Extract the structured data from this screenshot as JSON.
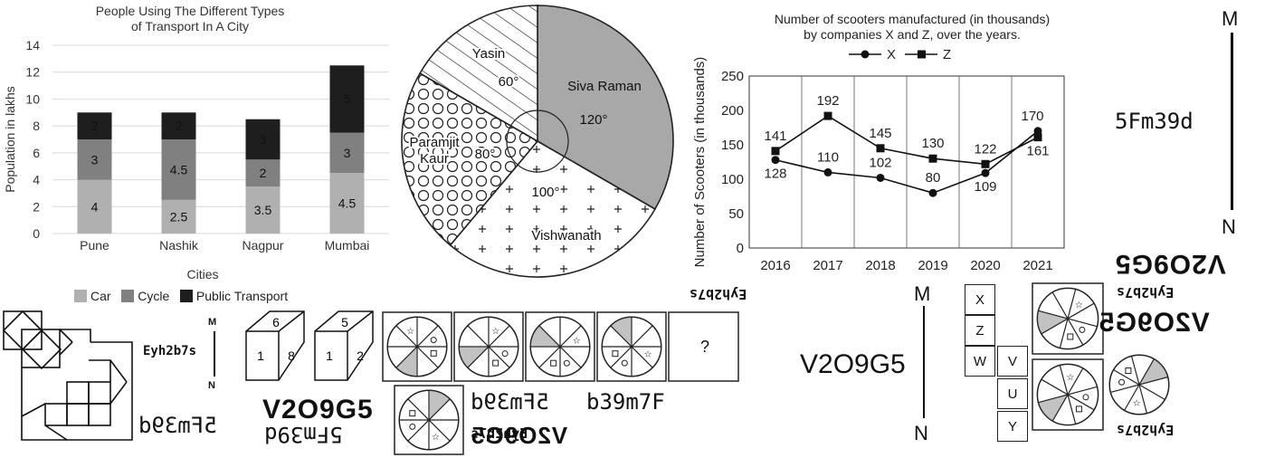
{
  "chart_data": [
    {
      "type": "bar",
      "title": "People Using The Different Types of Transport In A City",
      "title_lines": [
        "People Using The Different Types",
        "of Transport In A City"
      ],
      "xlabel": "Cities",
      "ylabel": "Population in lakhs",
      "ylim": [
        0,
        14
      ],
      "yticks": [
        "0",
        "2",
        "4",
        "6",
        "8",
        "10",
        "12",
        "14"
      ],
      "stacked": true,
      "categories": [
        "Pune",
        "Nashik",
        "Nagpur",
        "Mumbai"
      ],
      "series": [
        {
          "name": "Car",
          "values": [
            4,
            2.5,
            3.5,
            4.5
          ],
          "labels": [
            "4",
            "2.5",
            "3.5",
            "4.5"
          ],
          "color": "#b0b0b0"
        },
        {
          "name": "Cycle",
          "values": [
            3,
            4.5,
            2,
            3
          ],
          "labels": [
            "3",
            "4.5",
            "2",
            "3"
          ],
          "color": "#808080"
        },
        {
          "name": "Public Transport",
          "values": [
            2,
            2,
            3,
            5
          ],
          "labels": [
            "2",
            "2",
            "3",
            "5"
          ],
          "color": "#1e1e1e"
        }
      ],
      "legend_position": "bottom",
      "grid": true
    },
    {
      "type": "pie",
      "slices": [
        {
          "name": "Siva Raman",
          "angle": 120,
          "label": "120°",
          "fill": "gray"
        },
        {
          "name": "Vishwanath",
          "angle": 100,
          "label": "100°",
          "fill": "plus"
        },
        {
          "name": "Paramjit Kaur",
          "name_lines": [
            "Paramjit",
            "Kaur"
          ],
          "angle": 80,
          "label": "80°",
          "fill": "circles"
        },
        {
          "name": "Yasin",
          "angle": 60,
          "label": "60°",
          "fill": "hatch"
        }
      ]
    },
    {
      "type": "line",
      "title": "Number of scooters manufactured (in thousands) by companies X and Z, over the years.",
      "title_lines": [
        "Number of scooters manufactured (in thousands)",
        "by companies X and Z, over the years."
      ],
      "ylabel": "Number of Scooters (in thousands)",
      "ylim": [
        0,
        250
      ],
      "yticks": [
        "0",
        "50",
        "100",
        "150",
        "200",
        "250"
      ],
      "categories": [
        "2016",
        "2017",
        "2018",
        "2019",
        "2020",
        "2021"
      ],
      "series": [
        {
          "name": "X",
          "values": [
            128,
            110,
            102,
            80,
            109,
            170
          ],
          "marker": "circle"
        },
        {
          "name": "Z",
          "values": [
            141,
            192,
            145,
            130,
            122,
            161
          ],
          "marker": "square"
        }
      ],
      "legend_position": "top",
      "grid": true
    }
  ],
  "compass": {
    "north": "M",
    "south": "N"
  },
  "strings": {
    "code_a": "5Fm39d",
    "code_b": "Eyh2b7s",
    "code_c": "V2O9G5",
    "code_d": "b39m7F",
    "code_e": "5Fm39d",
    "question_mark": "?"
  },
  "dice": [
    {
      "top": "6",
      "left": "1",
      "right": "8"
    },
    {
      "top": "5",
      "left": "1",
      "right": "2"
    }
  ],
  "net_cells": [
    "X",
    "Z",
    "W",
    "V",
    "U",
    "Y"
  ]
}
